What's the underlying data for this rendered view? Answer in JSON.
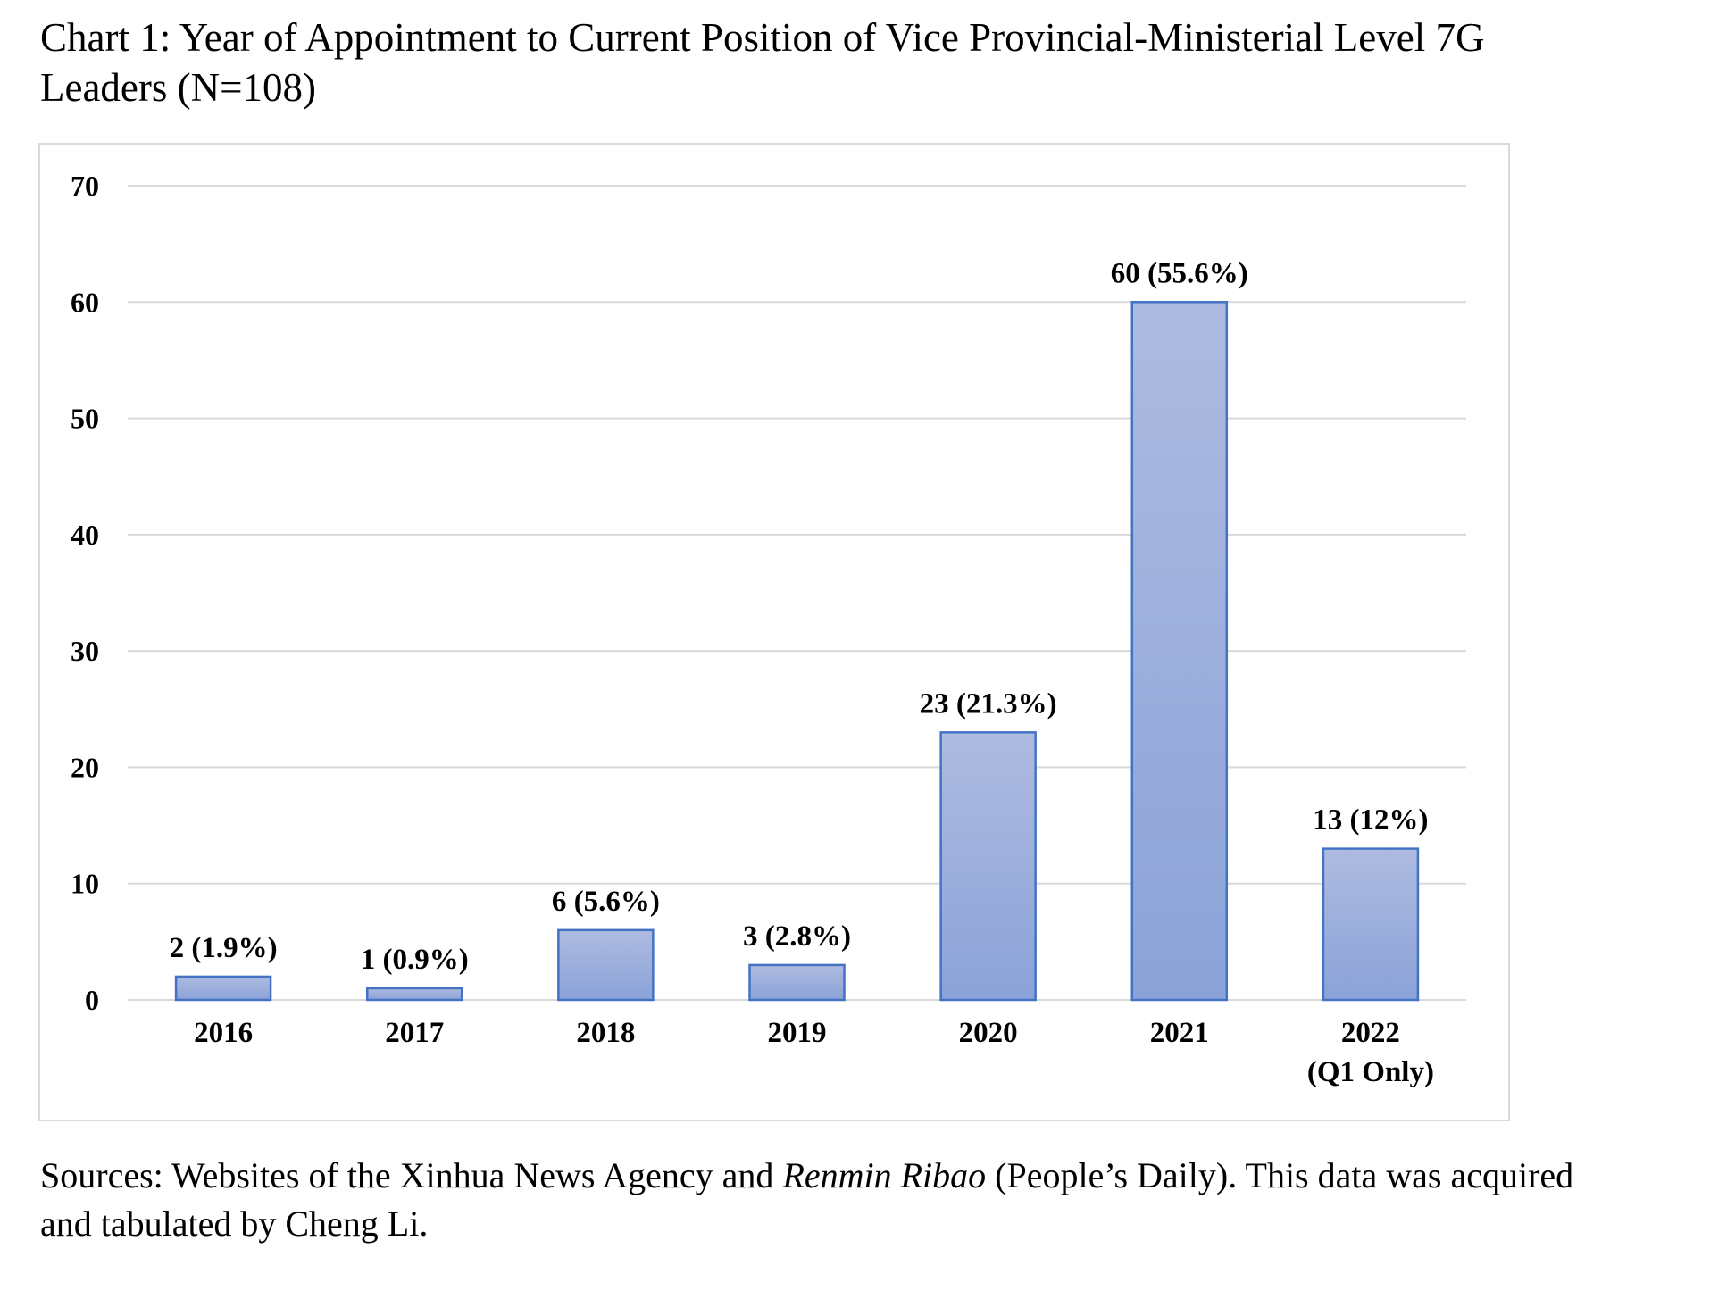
{
  "caption": {
    "line1": "Chart 1: Year of Appointment to Current Position of Vice Provincial-Ministerial Level 7G",
    "line2": "Leaders (N=108)"
  },
  "source": {
    "prefix": "Sources: Websites of the Xinhua News Agency and ",
    "italic": "Renmin Ribao",
    "suffix": " (People’s Daily). This data was acquired",
    "line2": "and tabulated by Cheng Li."
  },
  "chart_data": {
    "type": "bar",
    "title": "Year of Appointment to Current Position of Vice Provincial-Ministerial Level 7G Leaders (N=108)",
    "xlabel": "",
    "ylabel": "",
    "categories": [
      [
        "2016"
      ],
      [
        "2017"
      ],
      [
        "2018"
      ],
      [
        "2019"
      ],
      [
        "2020"
      ],
      [
        "2021"
      ],
      [
        "2022",
        "(Q1 Only)"
      ]
    ],
    "values": [
      2,
      1,
      6,
      3,
      23,
      60,
      13
    ],
    "data_labels": [
      "2 (1.9%)",
      "1 (0.9%)",
      "6 (5.6%)",
      "3 (2.8%)",
      "23 (21.3%)",
      "60 (55.6%)",
      "13 (12%)"
    ],
    "ylim": [
      0,
      70
    ],
    "yticks": [
      0,
      10,
      20,
      30,
      40,
      50,
      60,
      70
    ],
    "grid": "horizontal",
    "legend": "none",
    "colors": {
      "bar_fill_top": "#aebbe0",
      "bar_fill_bottom": "#8ba2d8",
      "bar_stroke": "#4472c4",
      "gridline": "#d9d9d9",
      "text": "#000000"
    }
  }
}
